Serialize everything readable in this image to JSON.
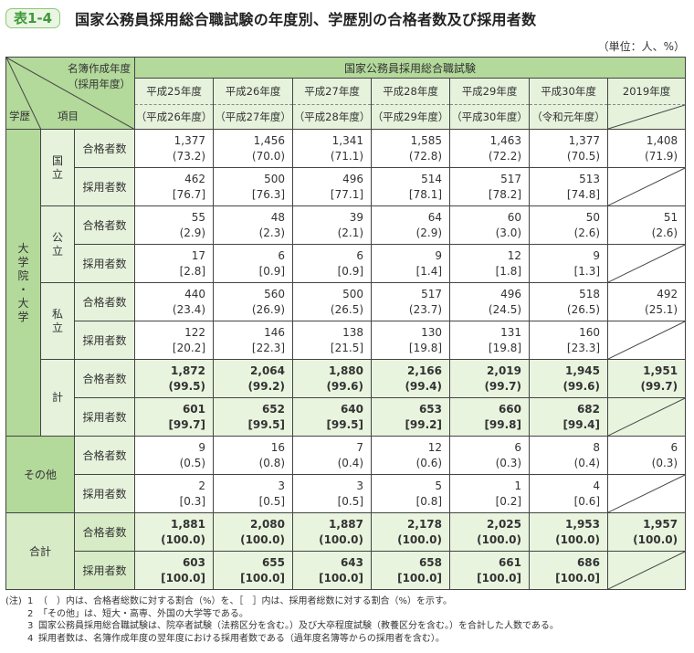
{
  "header": {
    "badge": "表1-4",
    "title": "国家公務員採用総合職試験の年度別、学歴別の合格者数及び採用者数",
    "unit": "（単位：人、%）"
  },
  "table": {
    "corner": {
      "top_line1": "名簿作成年度",
      "top_line2": "（採用年度）",
      "bottom_left": "学歴",
      "bottom_mid": "項目"
    },
    "group_title": "国家公務員採用総合職試験",
    "columns": [
      {
        "year": "平成25年度",
        "hire_year": "（平成26年度）"
      },
      {
        "year": "平成26年度",
        "hire_year": "（平成27年度）"
      },
      {
        "year": "平成27年度",
        "hire_year": "（平成28年度）"
      },
      {
        "year": "平成28年度",
        "hire_year": "（平成29年度）"
      },
      {
        "year": "平成29年度",
        "hire_year": "（平成30年度）"
      },
      {
        "year": "平成30年度",
        "hire_year": "（令和元年度）"
      },
      {
        "year": "2019年度",
        "hire_year": ""
      }
    ],
    "item_labels": {
      "pass": "合格者数",
      "hire": "採用者数"
    },
    "education_group": "大学院・大学",
    "rows": [
      {
        "category": "国立",
        "pass": [
          "1,377",
          "1,456",
          "1,341",
          "1,585",
          "1,463",
          "1,377",
          "1,408"
        ],
        "pass_pct": [
          "(73.2)",
          "(70.0)",
          "(71.1)",
          "(72.8)",
          "(72.2)",
          "(70.5)",
          "(71.9)"
        ],
        "hire": [
          "462",
          "500",
          "496",
          "514",
          "517",
          "513",
          ""
        ],
        "hire_pct": [
          "[76.7]",
          "[76.3]",
          "[77.1]",
          "[78.1]",
          "[78.2]",
          "[74.8]",
          ""
        ]
      },
      {
        "category": "公立",
        "pass": [
          "55",
          "48",
          "39",
          "64",
          "60",
          "50",
          "51"
        ],
        "pass_pct": [
          "(2.9)",
          "(2.3)",
          "(2.1)",
          "(2.9)",
          "(3.0)",
          "(2.6)",
          "(2.6)"
        ],
        "hire": [
          "17",
          "6",
          "6",
          "9",
          "12",
          "9",
          ""
        ],
        "hire_pct": [
          "[2.8]",
          "[0.9]",
          "[0.9]",
          "[1.4]",
          "[1.8]",
          "[1.3]",
          ""
        ]
      },
      {
        "category": "私立",
        "pass": [
          "440",
          "560",
          "500",
          "517",
          "496",
          "518",
          "492"
        ],
        "pass_pct": [
          "(23.4)",
          "(26.9)",
          "(26.5)",
          "(23.7)",
          "(24.5)",
          "(26.5)",
          "(25.1)"
        ],
        "hire": [
          "122",
          "146",
          "138",
          "130",
          "131",
          "160",
          ""
        ],
        "hire_pct": [
          "[20.2]",
          "[22.3]",
          "[21.5]",
          "[19.8]",
          "[19.8]",
          "[23.3]",
          ""
        ]
      },
      {
        "category": "計",
        "pass": [
          "1,872",
          "2,064",
          "1,880",
          "2,166",
          "2,019",
          "1,945",
          "1,951"
        ],
        "pass_pct": [
          "(99.5)",
          "(99.2)",
          "(99.6)",
          "(99.4)",
          "(99.7)",
          "(99.6)",
          "(99.7)"
        ],
        "hire": [
          "601",
          "652",
          "640",
          "653",
          "660",
          "682",
          ""
        ],
        "hire_pct": [
          "[99.7]",
          "[99.5]",
          "[99.5]",
          "[99.2]",
          "[99.8]",
          "[99.4]",
          ""
        ]
      },
      {
        "category": "その他",
        "pass": [
          "9",
          "16",
          "7",
          "12",
          "6",
          "8",
          "6"
        ],
        "pass_pct": [
          "(0.5)",
          "(0.8)",
          "(0.4)",
          "(0.6)",
          "(0.3)",
          "(0.4)",
          "(0.3)"
        ],
        "hire": [
          "2",
          "3",
          "3",
          "5",
          "1",
          "4",
          ""
        ],
        "hire_pct": [
          "[0.3]",
          "[0.5]",
          "[0.5]",
          "[0.8]",
          "[0.2]",
          "[0.6]",
          ""
        ]
      },
      {
        "category": "合計",
        "pass": [
          "1,881",
          "2,080",
          "1,887",
          "2,178",
          "2,025",
          "1,953",
          "1,957"
        ],
        "pass_pct": [
          "(100.0)",
          "(100.0)",
          "(100.0)",
          "(100.0)",
          "(100.0)",
          "(100.0)",
          "(100.0)"
        ],
        "hire": [
          "603",
          "655",
          "643",
          "658",
          "661",
          "686",
          ""
        ],
        "hire_pct": [
          "[100.0]",
          "[100.0]",
          "[100.0]",
          "[100.0]",
          "[100.0]",
          "[100.0]",
          ""
        ]
      }
    ]
  },
  "notes": {
    "label": "(注)",
    "items": [
      {
        "idx": "1",
        "text": "（　）内は、合格者総数に対する割合（%）を、［　］内は、採用者総数に対する割合（%）を示す。"
      },
      {
        "idx": "2",
        "text": "「その他」は、短大・高専、外国の大学等である。"
      },
      {
        "idx": "3",
        "text": "国家公務員採用総合職試験は、院卒者試験（法務区分を含む。）及び大卒程度試験（教養区分を含む。）を合計した人数である。"
      },
      {
        "idx": "4",
        "text": "採用者数は、名簿作成年度の翌年度における採用者数である（過年度名簿等からの採用者を含む）。"
      }
    ]
  },
  "colors": {
    "header_dark": "#b3d99b",
    "header_light": "#e6f2dc",
    "total_bg": "#e9f4df",
    "badge_text": "#3f9a3a"
  }
}
